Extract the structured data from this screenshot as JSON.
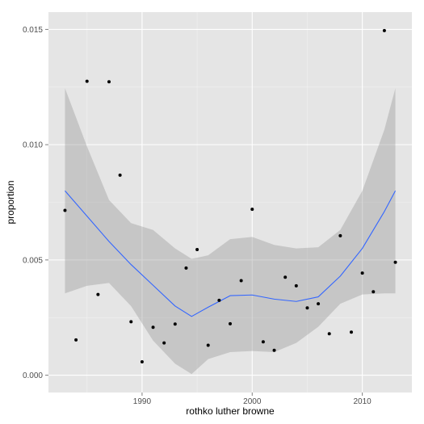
{
  "chart_data": {
    "type": "scatter",
    "xlabel": "rothko luther browne",
    "ylabel": "proportion",
    "xlim": [
      1981.5,
      2014.5
    ],
    "ylim": [
      -0.00075,
      0.01575
    ],
    "x_ticks": [
      1990,
      2000,
      2010
    ],
    "x_tick_labels": [
      "1990",
      "2000",
      "2010"
    ],
    "y_ticks": [
      0.0,
      0.005,
      0.01,
      0.015
    ],
    "y_tick_labels": [
      "0.000",
      "0.005",
      "0.010",
      "0.015"
    ],
    "grid": true,
    "points": [
      {
        "x": 1983,
        "y": 0.00715
      },
      {
        "x": 1984,
        "y": 0.00153
      },
      {
        "x": 1985,
        "y": 0.01275
      },
      {
        "x": 1986,
        "y": 0.0035
      },
      {
        "x": 1987,
        "y": 0.01273
      },
      {
        "x": 1988,
        "y": 0.00868
      },
      {
        "x": 1989,
        "y": 0.00232
      },
      {
        "x": 1990,
        "y": 0.00058
      },
      {
        "x": 1991,
        "y": 0.00208
      },
      {
        "x": 1992,
        "y": 0.0014
      },
      {
        "x": 1993,
        "y": 0.00222
      },
      {
        "x": 1994,
        "y": 0.00465
      },
      {
        "x": 1995,
        "y": 0.00545
      },
      {
        "x": 1996,
        "y": 0.0013
      },
      {
        "x": 1997,
        "y": 0.00325
      },
      {
        "x": 1998,
        "y": 0.00223
      },
      {
        "x": 1999,
        "y": 0.0041
      },
      {
        "x": 2000,
        "y": 0.0072
      },
      {
        "x": 2001,
        "y": 0.00145
      },
      {
        "x": 2002,
        "y": 0.00108
      },
      {
        "x": 2003,
        "y": 0.00425
      },
      {
        "x": 2004,
        "y": 0.00388
      },
      {
        "x": 2005,
        "y": 0.00292
      },
      {
        "x": 2006,
        "y": 0.0031
      },
      {
        "x": 2007,
        "y": 0.0018
      },
      {
        "x": 2008,
        "y": 0.00605
      },
      {
        "x": 2009,
        "y": 0.00187
      },
      {
        "x": 2010,
        "y": 0.00443
      },
      {
        "x": 2011,
        "y": 0.00362
      },
      {
        "x": 2012,
        "y": 0.01495
      },
      {
        "x": 2013,
        "y": 0.0049
      }
    ],
    "smooth": {
      "x": [
        1983,
        1985,
        1987,
        1989,
        1991,
        1993,
        1994.5,
        1996,
        1998,
        2000,
        2002,
        2004,
        2006,
        2008,
        2010,
        2012,
        2013
      ],
      "y": [
        0.008,
        0.0069,
        0.0058,
        0.0048,
        0.0039,
        0.003,
        0.00255,
        0.00295,
        0.00345,
        0.00348,
        0.0033,
        0.0032,
        0.0034,
        0.0043,
        0.0055,
        0.0071,
        0.008
      ],
      "lower": [
        0.00355,
        0.00388,
        0.004,
        0.003,
        0.0015,
        0.0005,
        5e-05,
        0.0007,
        0.001,
        0.00105,
        0.001,
        0.0014,
        0.0021,
        0.0031,
        0.0035,
        0.00355,
        0.00355
      ],
      "upper": [
        0.01245,
        0.00992,
        0.0076,
        0.0066,
        0.0063,
        0.0055,
        0.00505,
        0.0052,
        0.0059,
        0.006,
        0.00565,
        0.0055,
        0.00555,
        0.0063,
        0.008,
        0.01065,
        0.01245
      ]
    },
    "colors": {
      "panel": "#e5e5e5",
      "grid_major": "#ffffff",
      "grid_minor": "#f2f2f2",
      "ribbon": "#999999",
      "smooth_line": "#3366ff",
      "point": "#000000",
      "tick_text": "#4d4d4d",
      "tick_mark": "#7f7f7f"
    }
  }
}
